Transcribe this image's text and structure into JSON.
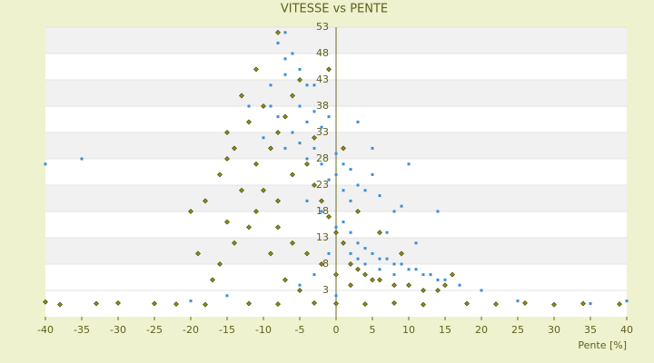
{
  "chart_data": {
    "type": "scatter",
    "title": "VITESSE vs PENTE",
    "x_label": "Pente [%]",
    "xlim": [
      -40,
      40
    ],
    "xticks": [
      -40,
      -35,
      -30,
      -25,
      -20,
      -15,
      -10,
      -5,
      0,
      5,
      10,
      15,
      20,
      25,
      30,
      35,
      40
    ],
    "ylim": [
      -2,
      53
    ],
    "yticks": [
      3,
      8,
      13,
      18,
      23,
      28,
      33,
      38,
      43,
      48,
      53
    ],
    "grid": true,
    "series": [
      {
        "color": "#3a8fd8",
        "x": [
          -8,
          -7,
          -6,
          -5,
          -7,
          -4,
          -6,
          -5,
          -3,
          -8,
          -4,
          -2,
          -6,
          -5,
          -3,
          -9,
          -10,
          -7,
          -4,
          -2,
          0,
          1,
          2,
          0,
          -1,
          1,
          3,
          2,
          4,
          5,
          6,
          10,
          8,
          1,
          2,
          3,
          4,
          5,
          6,
          7,
          8,
          9,
          10,
          11,
          12,
          13,
          14,
          15,
          3,
          4,
          6,
          8,
          2,
          17,
          20,
          0,
          -40,
          -35,
          -15,
          -20,
          25,
          35,
          40,
          -5,
          -3,
          -1,
          0,
          -2,
          -4,
          -12,
          -7,
          -9,
          -3,
          -1,
          3,
          5,
          9,
          14,
          7,
          11
        ],
        "values": [
          50,
          52,
          48,
          45,
          44,
          42,
          40,
          38,
          37,
          36,
          35,
          34,
          33,
          31,
          30,
          38,
          32,
          30,
          28,
          27,
          29,
          27,
          26,
          25,
          24,
          22,
          23,
          20,
          22,
          25,
          21,
          27,
          18,
          16,
          14,
          12,
          11,
          10,
          9,
          9,
          8,
          8,
          7,
          7,
          6,
          6,
          5,
          5,
          9,
          8,
          7,
          6,
          10,
          4,
          3,
          2,
          27,
          28,
          2,
          1,
          1,
          0.5,
          1,
          4,
          6,
          10,
          15,
          18,
          20,
          38,
          47,
          42,
          42,
          36,
          35,
          30,
          19,
          18,
          14,
          12
        ]
      },
      {
        "color": "#8c8c14",
        "x": [
          -10,
          -12,
          -14,
          -15,
          -16,
          -18,
          -13,
          -11,
          -9,
          -8,
          -7,
          -6,
          -5,
          -10,
          -12,
          -14,
          -16,
          -17,
          -20,
          -19,
          -15,
          -11,
          -8,
          -6,
          -4,
          -3,
          -2,
          -1,
          0,
          1,
          2,
          3,
          4,
          5,
          6,
          8,
          10,
          12,
          14,
          15,
          2,
          0,
          -2,
          -4,
          -6,
          -8,
          -9,
          -7,
          -5,
          -25,
          -33,
          -38,
          -30,
          -22,
          -18,
          -12,
          -8,
          -3,
          0,
          4,
          8,
          12,
          18,
          22,
          26,
          30,
          34,
          39,
          -1,
          -8,
          -13,
          -15,
          -11,
          -3,
          1,
          3,
          6,
          9,
          16,
          -40
        ],
        "values": [
          38,
          35,
          30,
          28,
          25,
          20,
          22,
          27,
          30,
          33,
          36,
          40,
          43,
          22,
          15,
          12,
          8,
          5,
          18,
          10,
          16,
          18,
          20,
          25,
          27,
          23,
          20,
          17,
          14,
          12,
          8,
          7,
          6,
          5,
          5,
          4,
          4,
          3,
          3,
          4,
          4,
          6,
          8,
          10,
          12,
          15,
          10,
          5,
          3,
          0.5,
          0.5,
          0.3,
          0.6,
          0.4,
          0.3,
          0.5,
          0.4,
          0.6,
          0.5,
          0.4,
          0.6,
          0.3,
          0.5,
          0.4,
          0.6,
          0.3,
          0.5,
          0.4,
          45,
          52,
          40,
          33,
          45,
          32,
          30,
          18,
          14,
          10,
          6,
          0.8
        ]
      }
    ]
  }
}
